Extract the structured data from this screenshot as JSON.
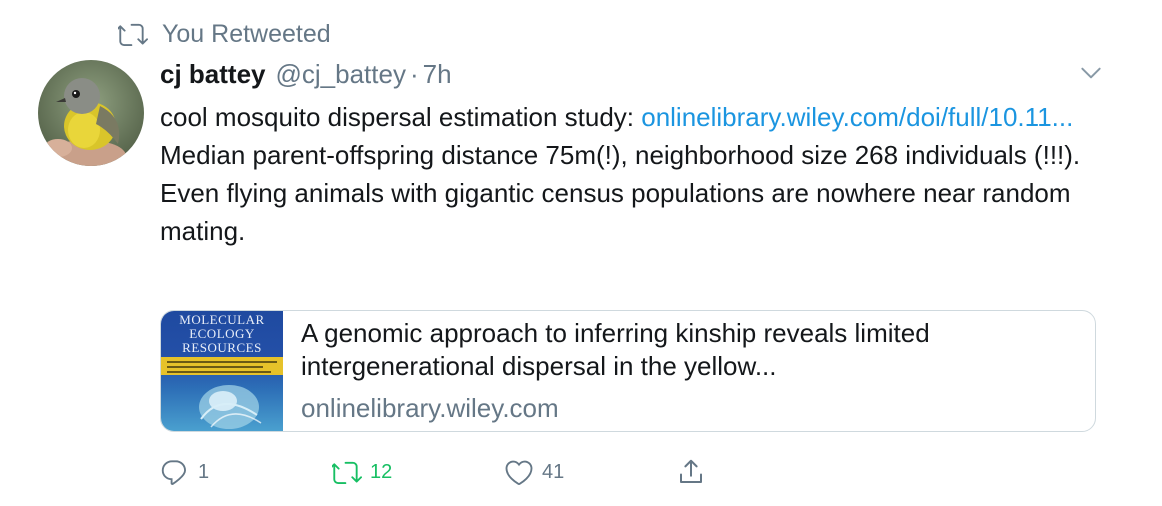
{
  "context": {
    "text": "You Retweeted",
    "icon": "retweet-icon"
  },
  "author": {
    "display_name": "cj battey",
    "handle": "@cj_battey",
    "separator": "·",
    "time": "7h"
  },
  "tweet": {
    "line1_prefix": "cool mosquito dispersal estimation study: ",
    "link_text": "onlinelibrary.wiley.com/doi/full/10.11...",
    "body": "Median parent-offspring distance 75m(!), neighborhood size 268 individuals (!!!). Even flying animals with gigantic census populations are nowhere near random mating."
  },
  "card": {
    "journal_title_line1": "MOLECULAR",
    "journal_title_line2": "ECOLOGY",
    "journal_title_line3": "RESOURCES",
    "title": "A genomic approach to inferring kinship reveals limited intergenerational dispersal in the yellow...",
    "domain": "onlinelibrary.wiley.com"
  },
  "actions": {
    "reply_count": "1",
    "retweet_count": "12",
    "like_count": "41"
  },
  "colors": {
    "link": "#1b95e0",
    "retweeted": "#17bf63",
    "secondary_text": "#657786"
  }
}
